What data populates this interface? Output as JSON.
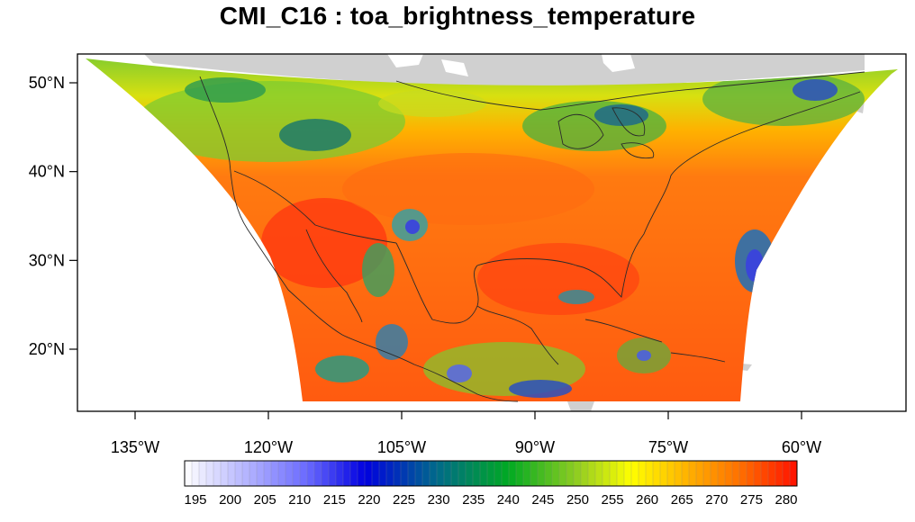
{
  "title": "CMI_C16 : toa_brightness_temperature",
  "axes": {
    "lat_ticks": [
      {
        "value": 50,
        "label": "50°N"
      },
      {
        "value": 40,
        "label": "40°N"
      },
      {
        "value": 30,
        "label": "30°N"
      },
      {
        "value": 20,
        "label": "20°N"
      }
    ],
    "lon_ticks": [
      {
        "value": -135,
        "label": "135°W"
      },
      {
        "value": -120,
        "label": "120°W"
      },
      {
        "value": -105,
        "label": "105°W"
      },
      {
        "value": -90,
        "label": "90°W"
      },
      {
        "value": -75,
        "label": "75°W"
      },
      {
        "value": -60,
        "label": "60°W"
      }
    ],
    "lon_range": [
      -137,
      -59
    ],
    "lat_range": [
      13,
      53
    ]
  },
  "colorbar": {
    "min": 195,
    "max": 280,
    "step": 5,
    "labels": [
      "195",
      "200",
      "205",
      "210",
      "215",
      "220",
      "225",
      "230",
      "235",
      "240",
      "245",
      "250",
      "255",
      "260",
      "265",
      "270",
      "275",
      "280"
    ],
    "stops": [
      {
        "value": 195,
        "color": "#ffffff"
      },
      {
        "value": 212,
        "color": "#6a6aff"
      },
      {
        "value": 220,
        "color": "#0000e0"
      },
      {
        "value": 230,
        "color": "#006a8a"
      },
      {
        "value": 240,
        "color": "#00aa22"
      },
      {
        "value": 250,
        "color": "#99d020"
      },
      {
        "value": 257,
        "color": "#ffff00"
      },
      {
        "value": 265,
        "color": "#ffb000"
      },
      {
        "value": 272,
        "color": "#ff7000"
      },
      {
        "value": 280,
        "color": "#ff1000"
      }
    ]
  },
  "colors": {
    "land_gray": "#d0d0d0",
    "coastline": "#2b2b2b",
    "frame": "#000000"
  }
}
